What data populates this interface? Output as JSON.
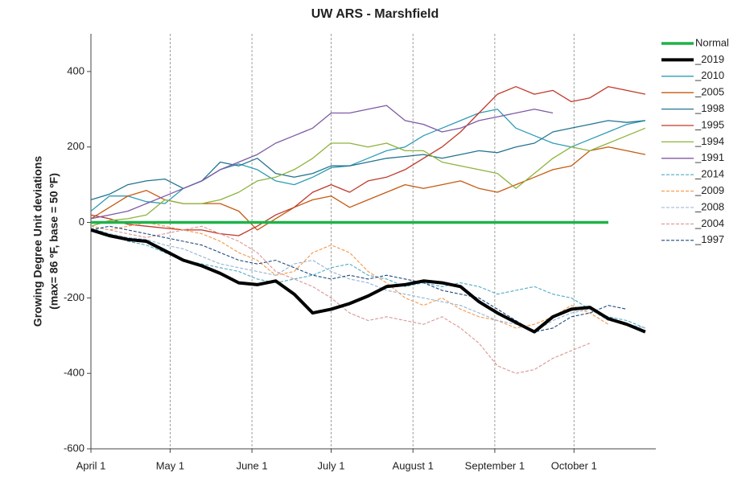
{
  "chart_data": {
    "type": "line",
    "title": "UW ARS - Marshfield",
    "y_label": [
      "Growing Degree Unit deviations",
      "(max= 86 ºF, base = 50 ºF)"
    ],
    "x": [
      0,
      7,
      14,
      21,
      28,
      35,
      42,
      49,
      56,
      63,
      70,
      77,
      84,
      91,
      98,
      105,
      112,
      119,
      126,
      133,
      140,
      147,
      154,
      161,
      168,
      175,
      182,
      189,
      196,
      203,
      210
    ],
    "xlim": [
      0,
      214
    ],
    "xticks": [
      {
        "value": 0,
        "label": "April 1"
      },
      {
        "value": 30,
        "label": "May 1"
      },
      {
        "value": 61,
        "label": "June 1"
      },
      {
        "value": 91,
        "label": "July 1"
      },
      {
        "value": 122,
        "label": "August 1"
      },
      {
        "value": 153,
        "label": "September 1"
      },
      {
        "value": 183,
        "label": "October 1"
      }
    ],
    "ylim": [
      -600,
      500
    ],
    "yticks": [
      -600,
      -400,
      -200,
      0,
      200,
      400
    ],
    "grid": true,
    "legend": "right",
    "series": [
      {
        "name": "Normal",
        "color": "#1fb24a",
        "width": 3.5,
        "dash": false,
        "values": [
          0,
          0,
          0,
          0,
          0,
          0,
          0,
          0,
          0,
          0,
          0,
          0,
          0,
          0,
          0,
          0,
          0,
          0,
          0,
          0,
          0,
          0,
          0,
          0,
          0,
          0,
          0,
          0,
          0,
          null,
          null
        ]
      },
      {
        "name": "_2019",
        "color": "#000000",
        "width": 4,
        "dash": false,
        "values": [
          -20,
          -35,
          -45,
          -50,
          -75,
          -100,
          -115,
          -135,
          -160,
          -165,
          -155,
          -190,
          -240,
          -230,
          -215,
          -195,
          -170,
          -165,
          -155,
          -160,
          -170,
          -210,
          -240,
          -265,
          -290,
          -250,
          -230,
          -225,
          -255,
          -270,
          -290
        ]
      },
      {
        "name": "_2010",
        "color": "#2e9cb5",
        "width": 1.3,
        "dash": false,
        "values": [
          30,
          70,
          70,
          55,
          50,
          90,
          110,
          140,
          155,
          140,
          110,
          100,
          120,
          145,
          150,
          170,
          190,
          200,
          230,
          250,
          270,
          290,
          300,
          250,
          230,
          210,
          200,
          220,
          240,
          260,
          270
        ]
      },
      {
        "name": "_2005",
        "color": "#c55a11",
        "width": 1.3,
        "dash": false,
        "values": [
          10,
          40,
          70,
          85,
          60,
          50,
          50,
          50,
          30,
          -20,
          10,
          40,
          60,
          70,
          40,
          60,
          80,
          100,
          90,
          100,
          110,
          90,
          80,
          100,
          120,
          140,
          150,
          190,
          200,
          190,
          180
        ]
      },
      {
        "name": "_1998",
        "color": "#23748f",
        "width": 1.3,
        "dash": false,
        "values": [
          60,
          75,
          100,
          110,
          115,
          90,
          110,
          160,
          150,
          170,
          130,
          120,
          130,
          150,
          150,
          160,
          170,
          175,
          180,
          170,
          180,
          190,
          185,
          200,
          210,
          240,
          250,
          260,
          270,
          265,
          270
        ]
      },
      {
        "name": "_1995",
        "color": "#c0392b",
        "width": 1.3,
        "dash": false,
        "values": [
          20,
          10,
          -5,
          -10,
          -15,
          -20,
          -20,
          -30,
          -35,
          -10,
          20,
          40,
          80,
          100,
          80,
          110,
          120,
          140,
          170,
          200,
          240,
          290,
          340,
          360,
          340,
          350,
          320,
          330,
          360,
          350,
          340
        ]
      },
      {
        "name": "_1994",
        "color": "#8db33a",
        "width": 1.3,
        "dash": false,
        "values": [
          -10,
          5,
          10,
          20,
          60,
          50,
          50,
          60,
          80,
          110,
          120,
          140,
          170,
          210,
          210,
          200,
          210,
          190,
          190,
          160,
          150,
          140,
          130,
          90,
          130,
          170,
          200,
          190,
          210,
          230,
          250
        ]
      },
      {
        "name": "_1991",
        "color": "#7d5aa6",
        "width": 1.3,
        "dash": false,
        "values": [
          10,
          20,
          30,
          50,
          70,
          90,
          110,
          140,
          160,
          180,
          210,
          230,
          250,
          290,
          290,
          300,
          310,
          270,
          260,
          240,
          250,
          270,
          280,
          290,
          300,
          290,
          null,
          null,
          null,
          null,
          null
        ]
      },
      {
        "name": "_2014",
        "color": "#4bacc6",
        "width": 1.1,
        "dash": true,
        "values": [
          -15,
          -30,
          -50,
          -60,
          -80,
          -100,
          -110,
          -120,
          -130,
          -150,
          -160,
          -150,
          -140,
          -120,
          -110,
          -140,
          -150,
          -170,
          -160,
          -170,
          -160,
          -170,
          -190,
          -180,
          -170,
          -190,
          -200,
          -230,
          -250,
          -260,
          -280
        ]
      },
      {
        "name": "_2009",
        "color": "#f79646",
        "width": 1.1,
        "dash": true,
        "values": [
          -10,
          -20,
          -10,
          0,
          -10,
          -20,
          -30,
          -50,
          -80,
          -100,
          -140,
          -130,
          -80,
          -60,
          -80,
          -130,
          -160,
          -200,
          -220,
          -200,
          -230,
          -250,
          -260,
          -280,
          -270,
          -250,
          -220,
          -240,
          -270,
          null,
          null
        ]
      },
      {
        "name": "_2008",
        "color": "#95b3d7",
        "width": 1.1,
        "dash": true,
        "values": [
          -20,
          -30,
          -40,
          -45,
          -60,
          -70,
          -90,
          -110,
          -120,
          -130,
          -140,
          -110,
          -100,
          -130,
          -150,
          -160,
          -180,
          -190,
          -200,
          -210,
          -220,
          -240,
          -260,
          -270,
          -290,
          -260,
          -240,
          -230,
          -260,
          -270,
          -280
        ]
      },
      {
        "name": "_2004",
        "color": "#d99694",
        "width": 1.1,
        "dash": true,
        "values": [
          -10,
          -20,
          -30,
          -40,
          -30,
          -20,
          -10,
          -30,
          -50,
          -80,
          -130,
          -150,
          -170,
          -200,
          -240,
          -260,
          -250,
          -260,
          -270,
          -250,
          -280,
          -320,
          -380,
          -400,
          -390,
          -360,
          -340,
          -320,
          null,
          null,
          null
        ]
      },
      {
        "name": "_1997",
        "color": "#1f497d",
        "width": 1.1,
        "dash": true,
        "values": [
          -20,
          -10,
          -20,
          -30,
          -40,
          -50,
          -60,
          -80,
          -100,
          -110,
          -100,
          -120,
          -140,
          -150,
          -140,
          -150,
          -140,
          -150,
          -160,
          -180,
          -190,
          -200,
          -230,
          -260,
          -290,
          -280,
          -250,
          -240,
          -220,
          -230,
          null
        ]
      }
    ]
  }
}
